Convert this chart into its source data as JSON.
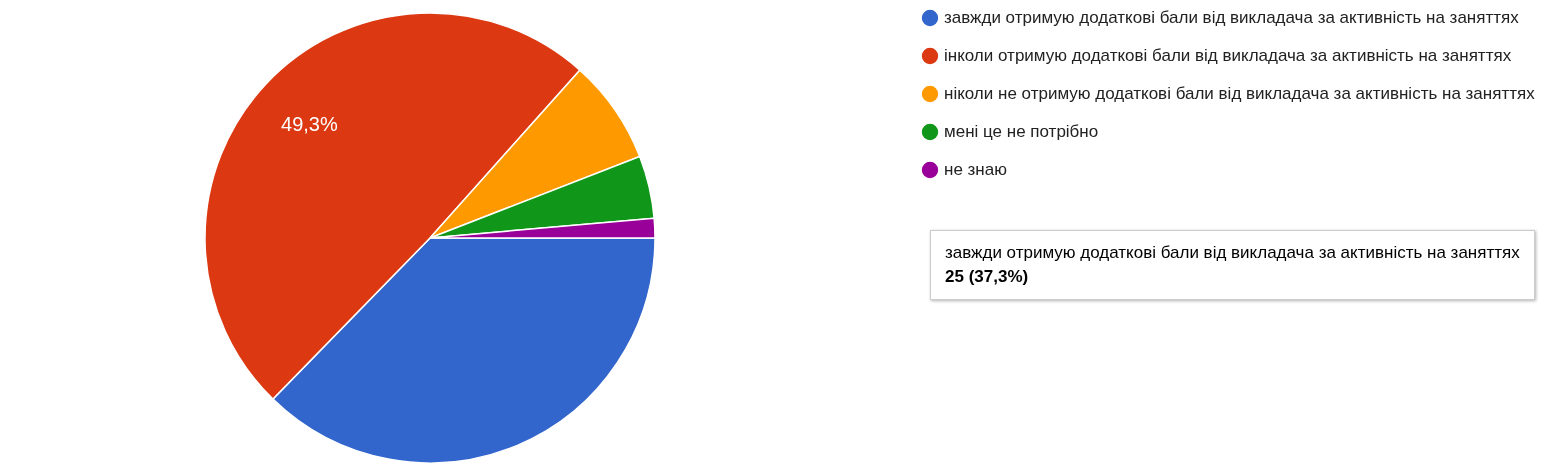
{
  "chart_data": {
    "type": "pie",
    "categories": [
      "завжди отримую додаткові бали від викладача за активність на заняттях",
      "інколи отримую додаткові бали від викладача за активність на заняттях",
      "ніколи не отримую додаткові бали від викладача за активність на заняттях",
      "мені це не потрібно",
      "не знаю"
    ],
    "values": [
      37.3,
      49.3,
      7.5,
      4.5,
      1.4
    ],
    "colors": [
      "#3366cc",
      "#dc3912",
      "#ff9900",
      "#109618",
      "#990099"
    ],
    "value_labels": [
      null,
      "49,3%",
      null,
      null,
      null
    ],
    "legend": "right",
    "annotations": [
      "завжди отримую додаткові бали від викладача за активність на заняттях",
      "25 (37,3%)"
    ]
  }
}
